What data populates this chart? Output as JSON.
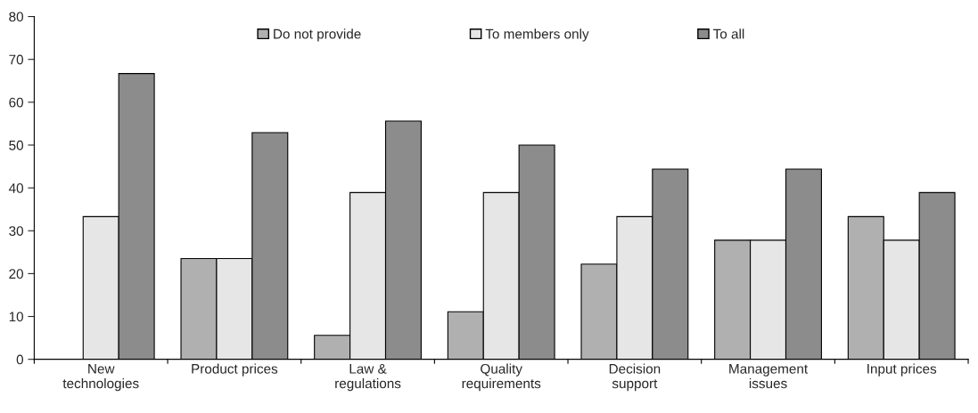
{
  "chart_data": {
    "type": "bar",
    "categories": [
      "New\ntechnologies",
      "Product prices",
      "Law &\nregulations",
      "Quality\nrequirements",
      "Decision\nsupport",
      "Management\nissues",
      "Input prices"
    ],
    "series": [
      {
        "name": "Do not provide",
        "color": "#b0b0b0",
        "values": [
          0,
          23.5,
          5.6,
          11.1,
          22.2,
          27.8,
          33.3
        ]
      },
      {
        "name": "To members only",
        "color": "#e6e6e6",
        "values": [
          33.3,
          23.5,
          38.9,
          38.9,
          33.3,
          27.8,
          27.8
        ]
      },
      {
        "name": "To all",
        "color": "#8c8c8c",
        "values": [
          66.7,
          52.9,
          55.6,
          50,
          44.4,
          44.4,
          38.9
        ]
      }
    ],
    "ylim": [
      0,
      80
    ],
    "yticks": [
      0,
      10,
      20,
      30,
      40,
      50,
      60,
      70,
      80
    ],
    "grid": false,
    "legend": "top"
  }
}
